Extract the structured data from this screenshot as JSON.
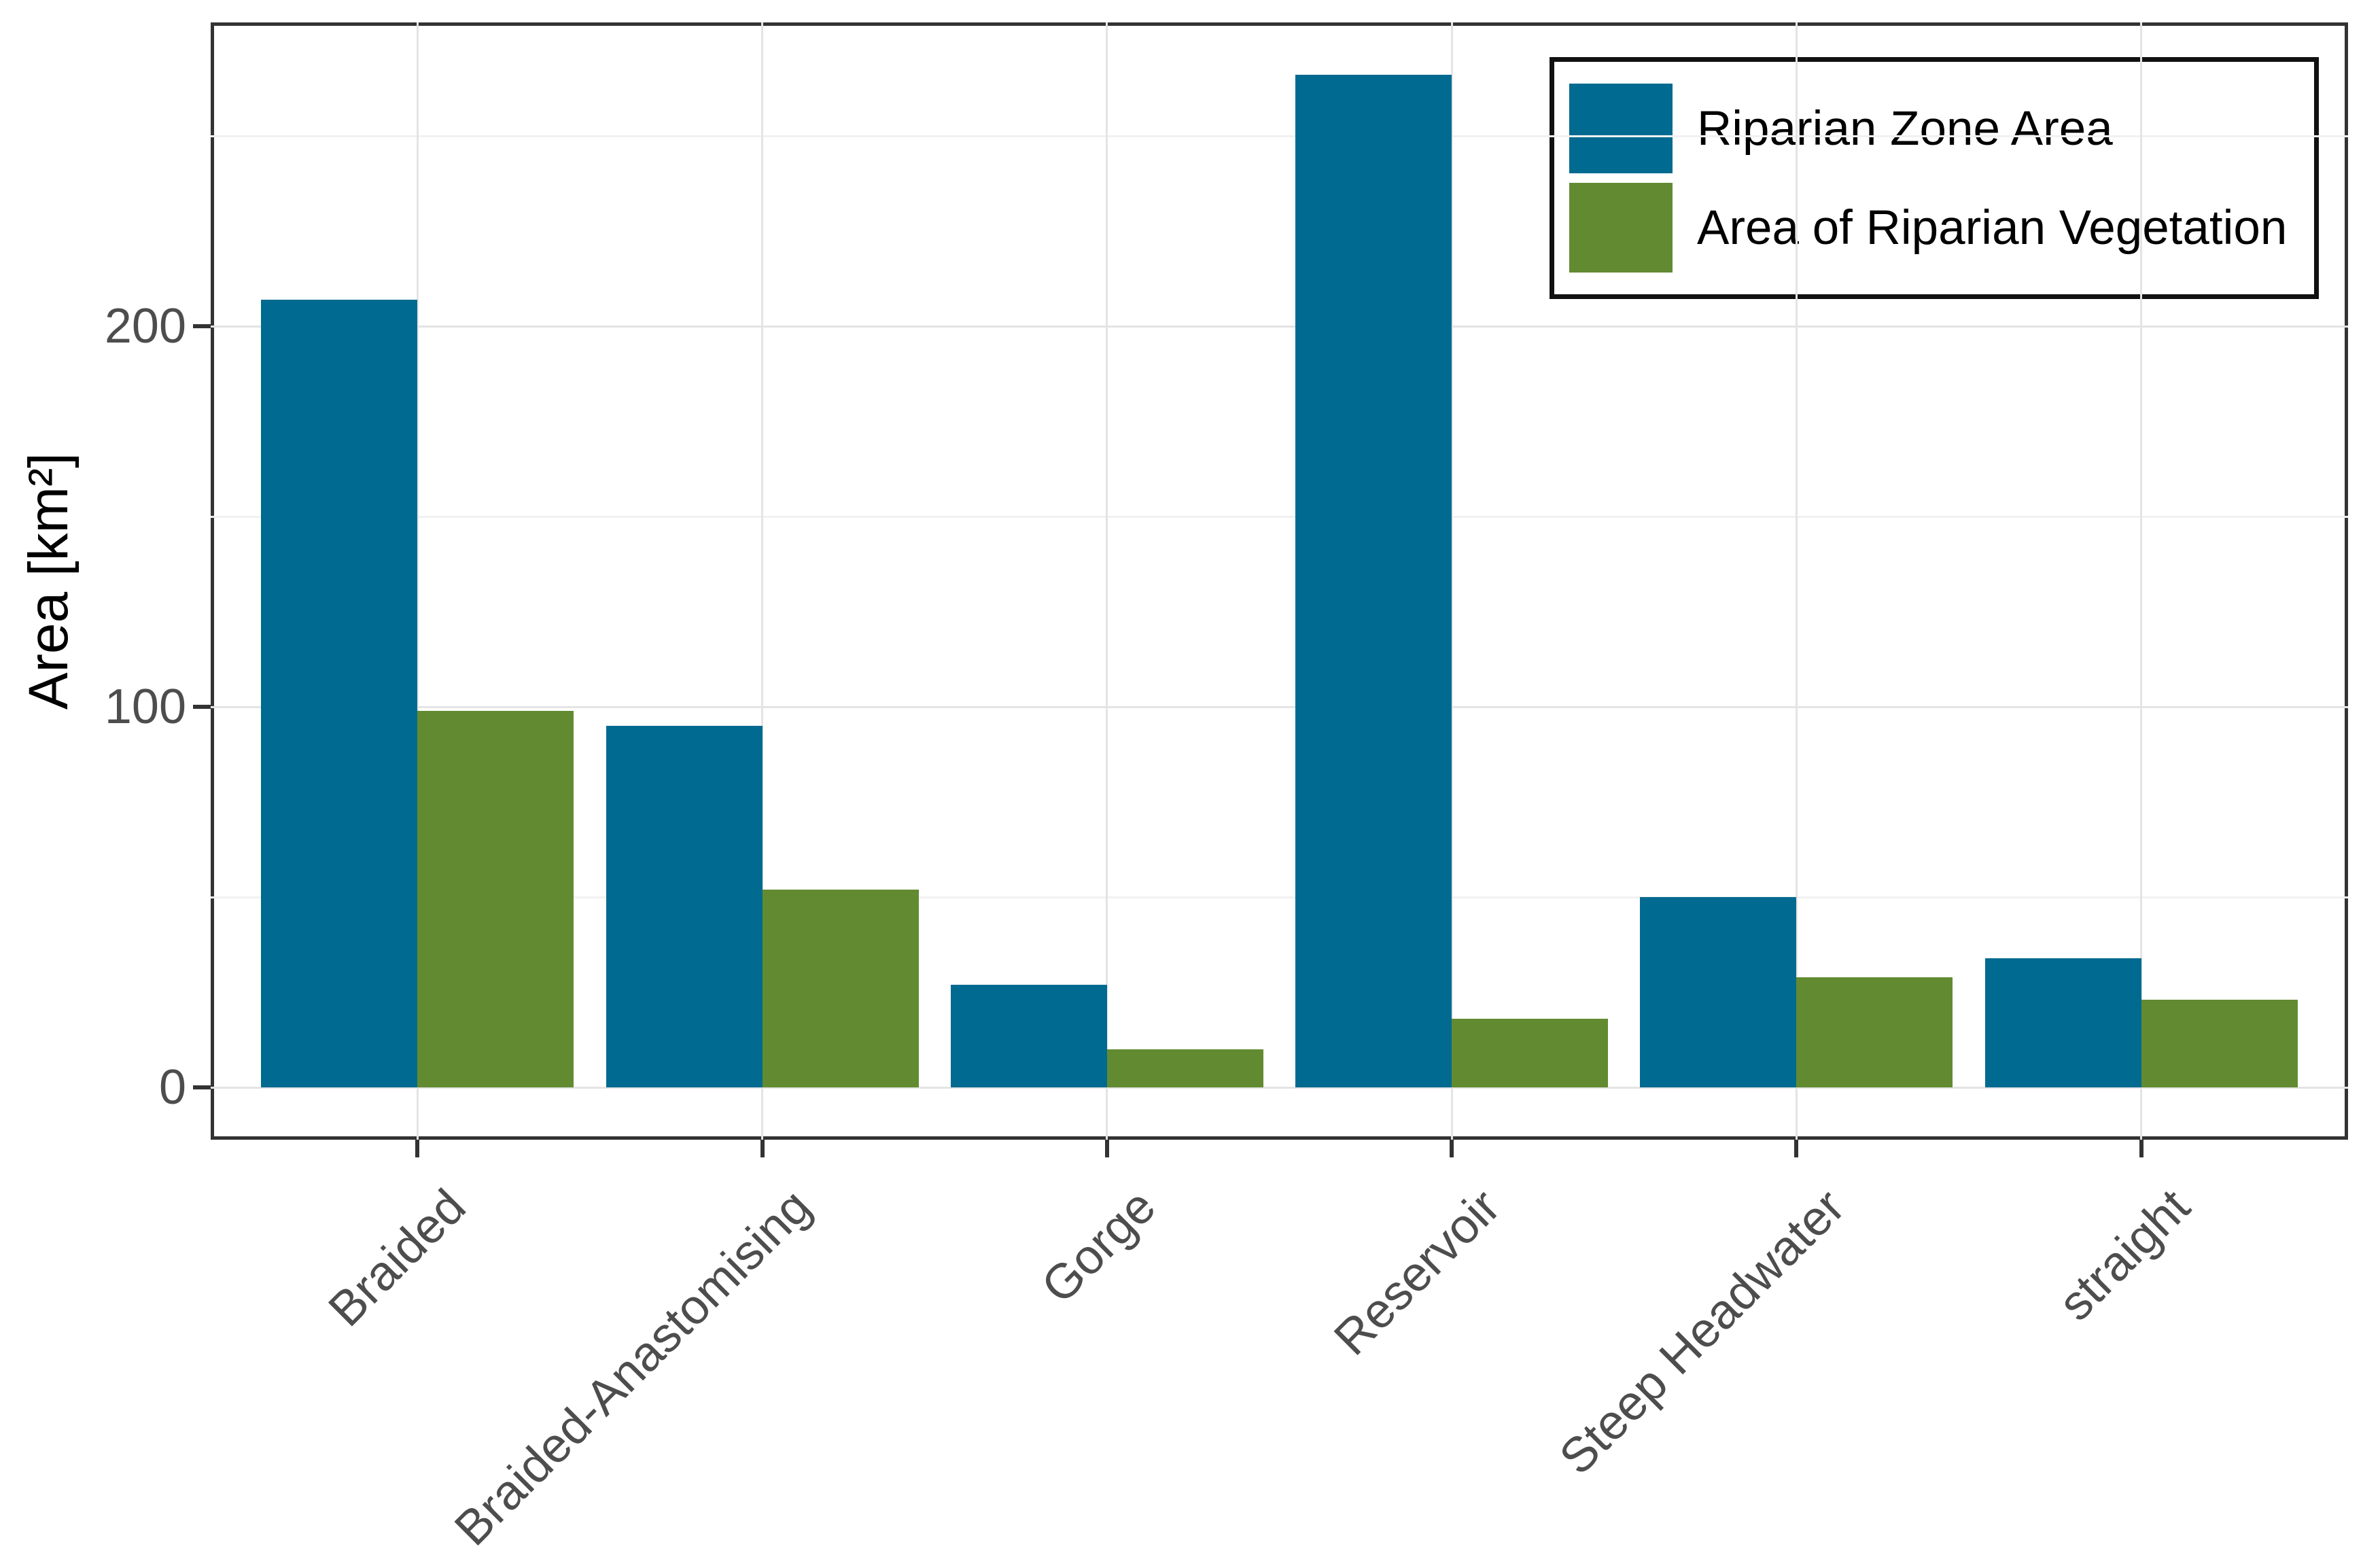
{
  "chart_data": {
    "type": "bar",
    "title": "",
    "categories": [
      "Braided",
      "Braided-Anastomising",
      "Gorge",
      "Reservoir",
      "Steep Headwater",
      "straight"
    ],
    "series": [
      {
        "name": "Riparian Zone Area",
        "color": "#006a90",
        "values": [
          207,
          95,
          27,
          266,
          50,
          34
        ]
      },
      {
        "name": "Area of Riparian Vegetation",
        "color": "#628b31",
        "values": [
          99,
          52,
          10,
          18,
          29,
          23
        ]
      }
    ],
    "xlabel": "",
    "ylabel": "Area [km²]",
    "yticks": [
      0,
      100,
      200
    ],
    "yticks_minor": [
      50,
      150,
      250
    ],
    "ylim": [
      -14,
      280
    ],
    "grid": "on",
    "x_tick_angle": 45,
    "legend_position": "top-right",
    "colors": {
      "panel_border": "#333333",
      "grid_major": "#e4e4e4",
      "grid_minor": "#f1f1f1",
      "tick_mark": "#333333",
      "tick_label": "#4d4d4d",
      "axis_title": "#000000",
      "legend_border": "#111111",
      "background": "#ffffff"
    }
  }
}
